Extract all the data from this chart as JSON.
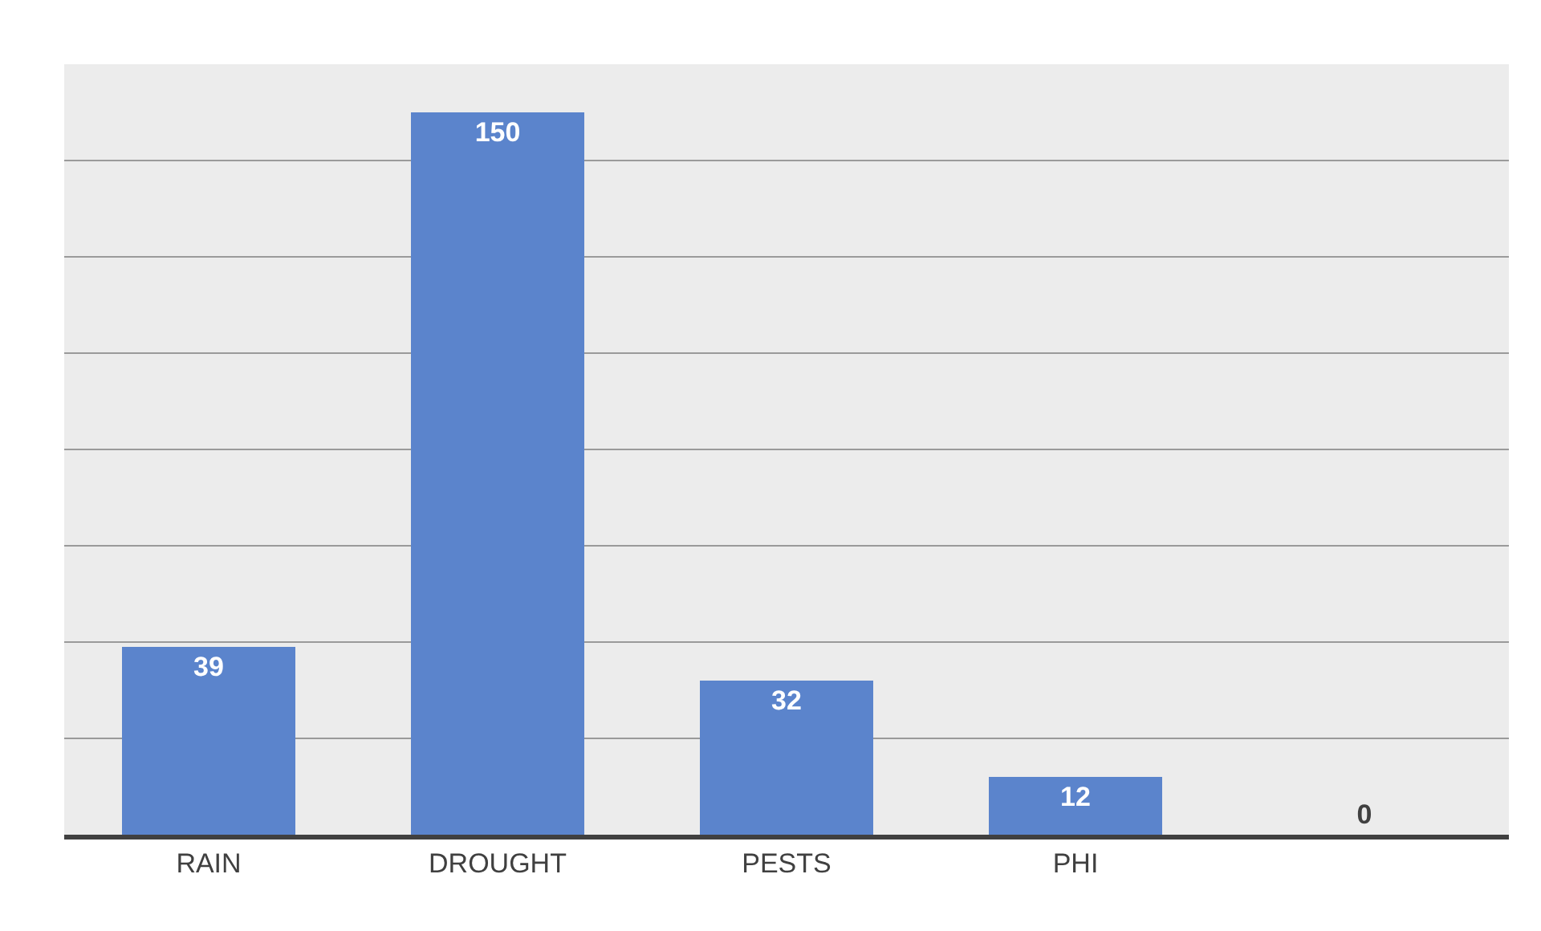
{
  "chart_data": {
    "type": "bar",
    "categories": [
      "RAIN",
      "DROUGHT",
      "PESTS",
      "PHI",
      null
    ],
    "values": [
      39,
      150,
      32,
      12,
      0
    ],
    "color": "#5b84cc",
    "data_labels": true,
    "ylim": [
      0,
      160
    ],
    "yticks": [
      {
        "value": 0,
        "label": null
      },
      {
        "value": 20,
        "label": null
      },
      {
        "value": 40,
        "label": null
      },
      {
        "value": 60,
        "label": null
      },
      {
        "value": 80,
        "label": null
      },
      {
        "value": 100,
        "label": null
      },
      {
        "value": 120,
        "label": null
      },
      {
        "value": 140,
        "label": null
      },
      {
        "value": 160,
        "label": null
      }
    ],
    "grid": "y",
    "tick_labels": "x"
  }
}
